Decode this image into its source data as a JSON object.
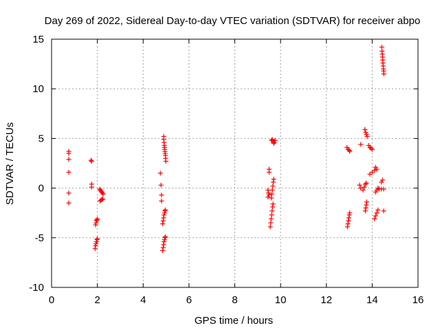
{
  "chart_data": {
    "type": "scatter",
    "title": "Day 269 of 2022, Sidereal Day-to-day VTEC variation (SDTVAR) for receiver abpo",
    "xlabel": "GPS time / hours",
    "ylabel": "SDTVAR / TECUs",
    "xlim": [
      0,
      16
    ],
    "ylim": [
      -10,
      15
    ],
    "xticks": [
      0,
      2,
      4,
      6,
      8,
      10,
      12,
      14,
      16
    ],
    "yticks": [
      -10,
      -5,
      0,
      5,
      10,
      15
    ],
    "grid": true,
    "marker": "+",
    "marker_color": "#ff0000",
    "series": [
      {
        "name": "SDTVAR",
        "points": [
          [
            0.75,
            3.7
          ],
          [
            0.75,
            3.5
          ],
          [
            0.75,
            2.9
          ],
          [
            0.75,
            1.6
          ],
          [
            0.75,
            -0.5
          ],
          [
            0.75,
            -1.5
          ],
          [
            1.72,
            2.8
          ],
          [
            1.75,
            2.7
          ],
          [
            1.75,
            0.4
          ],
          [
            1.75,
            0.1
          ],
          [
            1.92,
            -3.7
          ],
          [
            1.94,
            -3.5
          ],
          [
            1.96,
            -3.3
          ],
          [
            1.98,
            -3.2
          ],
          [
            2.0,
            -3.1
          ],
          [
            1.9,
            -6.1
          ],
          [
            1.92,
            -5.8
          ],
          [
            1.94,
            -5.6
          ],
          [
            1.96,
            -5.4
          ],
          [
            1.98,
            -5.2
          ],
          [
            2.0,
            -5.1
          ],
          [
            2.1,
            -0.1
          ],
          [
            2.13,
            -0.2
          ],
          [
            2.16,
            -0.3
          ],
          [
            2.19,
            -0.4
          ],
          [
            2.22,
            -0.5
          ],
          [
            2.25,
            -0.6
          ],
          [
            2.12,
            -1.3
          ],
          [
            2.16,
            -1.2
          ],
          [
            2.2,
            -1.15
          ],
          [
            2.24,
            -1.1
          ],
          [
            4.75,
            1.5
          ],
          [
            4.78,
            0.3
          ],
          [
            4.8,
            -0.7
          ],
          [
            4.8,
            -1.3
          ],
          [
            4.85,
            -3.6
          ],
          [
            4.87,
            -3.3
          ],
          [
            4.89,
            -3.0
          ],
          [
            4.91,
            -2.7
          ],
          [
            4.93,
            -2.5
          ],
          [
            4.95,
            -2.3
          ],
          [
            4.97,
            -2.2
          ],
          [
            4.85,
            -6.3
          ],
          [
            4.87,
            -6.0
          ],
          [
            4.89,
            -5.7
          ],
          [
            4.91,
            -5.4
          ],
          [
            4.93,
            -5.2
          ],
          [
            4.95,
            -5.0
          ],
          [
            4.97,
            -4.9
          ],
          [
            4.9,
            5.2
          ],
          [
            4.9,
            4.9
          ],
          [
            4.91,
            4.6
          ],
          [
            4.92,
            4.3
          ],
          [
            4.93,
            4.1
          ],
          [
            4.94,
            3.9
          ],
          [
            4.95,
            3.7
          ],
          [
            4.96,
            3.5
          ],
          [
            4.97,
            3.3
          ],
          [
            4.98,
            3.0
          ],
          [
            4.99,
            2.7
          ],
          [
            9.45,
            -0.2
          ],
          [
            9.47,
            -0.5
          ],
          [
            9.49,
            -0.7
          ],
          [
            9.45,
            -0.9
          ],
          [
            9.5,
            1.6
          ],
          [
            9.5,
            1.9
          ],
          [
            9.55,
            -3.9
          ],
          [
            9.57,
            -3.5
          ],
          [
            9.59,
            -3.1
          ],
          [
            9.61,
            -2.7
          ],
          [
            9.63,
            -2.3
          ],
          [
            9.65,
            -1.9
          ],
          [
            9.67,
            -1.6
          ],
          [
            9.6,
            -1.0
          ],
          [
            9.62,
            -0.6
          ],
          [
            9.64,
            -0.2
          ],
          [
            9.66,
            0.2
          ],
          [
            9.68,
            0.6
          ],
          [
            9.7,
            0.9
          ],
          [
            9.6,
            4.8
          ],
          [
            9.64,
            4.9
          ],
          [
            9.68,
            4.7
          ],
          [
            9.72,
            4.6
          ],
          [
            9.76,
            4.8
          ],
          [
            9.7,
            4.5
          ],
          [
            12.9,
            4.1
          ],
          [
            12.95,
            3.9
          ],
          [
            13.0,
            3.8
          ],
          [
            13.02,
            3.7
          ],
          [
            12.92,
            -3.9
          ],
          [
            12.94,
            -3.6
          ],
          [
            12.96,
            -3.3
          ],
          [
            12.98,
            -3.0
          ],
          [
            13.0,
            -2.7
          ],
          [
            13.02,
            -2.5
          ],
          [
            13.45,
            0.3
          ],
          [
            13.5,
            0.0
          ],
          [
            13.6,
            -0.2
          ],
          [
            13.65,
            0.1
          ],
          [
            13.7,
            0.4
          ],
          [
            13.75,
            0.5
          ],
          [
            13.5,
            4.4
          ],
          [
            13.68,
            5.9
          ],
          [
            13.72,
            5.6
          ],
          [
            13.75,
            5.4
          ],
          [
            13.78,
            5.2
          ],
          [
            13.7,
            -2.3
          ],
          [
            13.72,
            -2.0
          ],
          [
            13.74,
            -1.7
          ],
          [
            13.76,
            -1.4
          ],
          [
            13.85,
            4.3
          ],
          [
            13.9,
            4.1
          ],
          [
            13.95,
            4.0
          ],
          [
            14.0,
            3.9
          ],
          [
            13.9,
            1.4
          ],
          [
            14.0,
            1.6
          ],
          [
            14.1,
            1.8
          ],
          [
            14.15,
            2.1
          ],
          [
            14.2,
            1.9
          ],
          [
            14.1,
            -3.1
          ],
          [
            14.15,
            -2.8
          ],
          [
            14.2,
            -2.5
          ],
          [
            14.25,
            -2.2
          ],
          [
            14.15,
            -0.4
          ],
          [
            14.2,
            -0.2
          ],
          [
            14.25,
            0.0
          ],
          [
            14.3,
            -0.1
          ],
          [
            14.4,
            0.6
          ],
          [
            14.45,
            0.8
          ],
          [
            14.4,
            -0.1
          ],
          [
            14.5,
            -0.1
          ],
          [
            14.5,
            -2.3
          ],
          [
            14.42,
            14.2
          ],
          [
            14.43,
            13.8
          ],
          [
            14.44,
            13.5
          ],
          [
            14.45,
            13.2
          ],
          [
            14.46,
            12.9
          ],
          [
            14.47,
            12.6
          ],
          [
            14.48,
            12.3
          ],
          [
            14.49,
            12.0
          ],
          [
            14.5,
            11.8
          ],
          [
            14.51,
            11.5
          ]
        ]
      }
    ]
  }
}
